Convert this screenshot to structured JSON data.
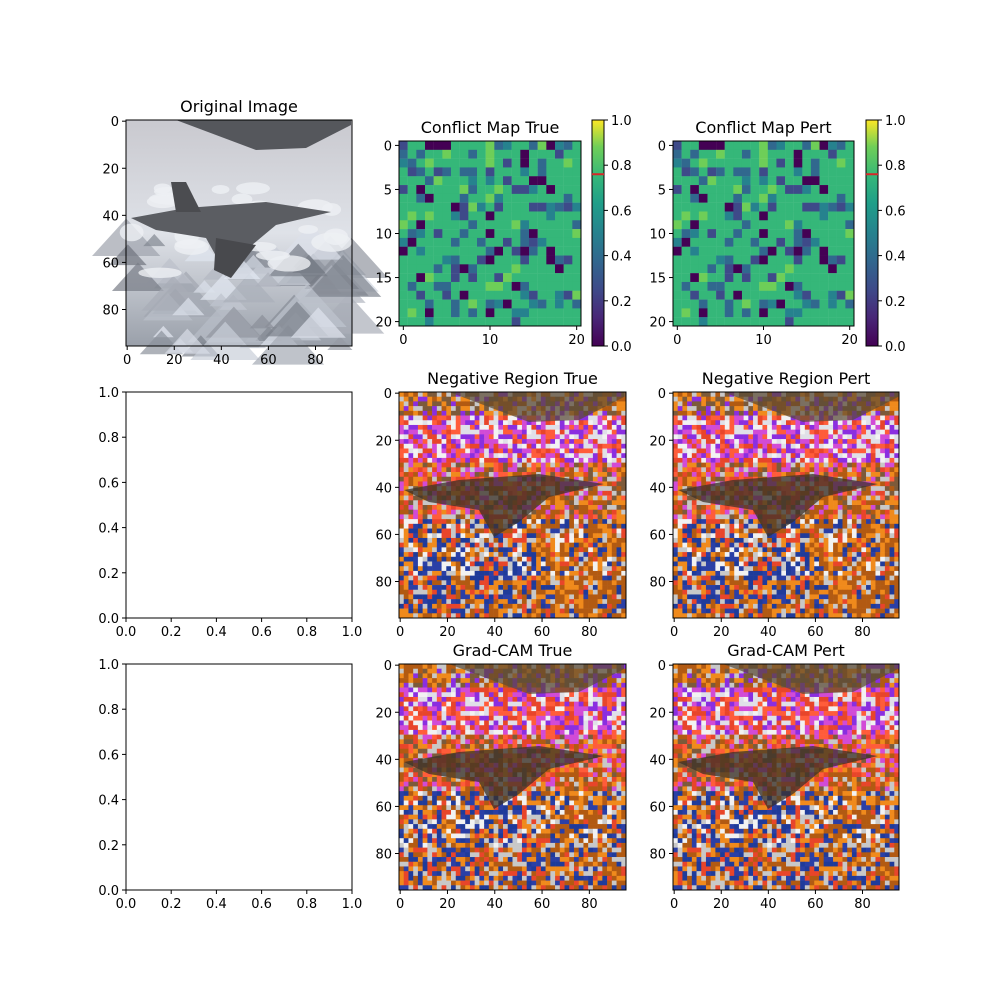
{
  "figure": {
    "panels": [
      {
        "id": "orig",
        "title": "Original Image",
        "kind": "image",
        "content": "two-fighter-jets-over-mountains",
        "xticks": [
          "0",
          "20",
          "40",
          "60",
          "80"
        ],
        "yticks": [
          "0",
          "20",
          "40",
          "60",
          "80"
        ]
      },
      {
        "id": "cmt",
        "title": "Conflict Map True",
        "kind": "heatmap",
        "xticks": [
          "0",
          "10",
          "20"
        ],
        "yticks": [
          "0",
          "5",
          "10",
          "15",
          "20"
        ]
      },
      {
        "id": "cmp",
        "title": "Conflict Map Pert",
        "kind": "heatmap",
        "xticks": [
          "0",
          "10",
          "20"
        ],
        "yticks": [
          "0",
          "5",
          "10",
          "15",
          "20"
        ]
      },
      {
        "id": "empty1",
        "title": "",
        "kind": "empty",
        "xticks": [
          "0.0",
          "0.2",
          "0.4",
          "0.6",
          "0.8",
          "1.0"
        ],
        "yticks": [
          "0.0",
          "0.2",
          "0.4",
          "0.6",
          "0.8",
          "1.0"
        ]
      },
      {
        "id": "nrt",
        "title": "Negative Region True",
        "kind": "overlay",
        "content": "negative-region-overlay",
        "xticks": [
          "0",
          "20",
          "40",
          "60",
          "80"
        ],
        "yticks": [
          "0",
          "20",
          "40",
          "60",
          "80"
        ]
      },
      {
        "id": "nrp",
        "title": "Negative Region Pert",
        "kind": "overlay",
        "content": "negative-region-overlay",
        "xticks": [
          "0",
          "20",
          "40",
          "60",
          "80"
        ],
        "yticks": [
          "0",
          "20",
          "40",
          "60",
          "80"
        ]
      },
      {
        "id": "empty2",
        "title": "",
        "kind": "empty",
        "xticks": [
          "0.0",
          "0.2",
          "0.4",
          "0.6",
          "0.8",
          "1.0"
        ],
        "yticks": [
          "0.0",
          "0.2",
          "0.4",
          "0.6",
          "0.8",
          "1.0"
        ]
      },
      {
        "id": "gct",
        "title": "Grad-CAM True",
        "kind": "overlay",
        "content": "grad-cam-overlay",
        "xticks": [
          "0",
          "20",
          "40",
          "60",
          "80"
        ],
        "yticks": [
          "0",
          "20",
          "40",
          "60",
          "80"
        ]
      },
      {
        "id": "gcp",
        "title": "Grad-CAM Pert",
        "kind": "overlay",
        "content": "grad-cam-overlay",
        "xticks": [
          "0",
          "20",
          "40",
          "60",
          "80"
        ],
        "yticks": [
          "0",
          "20",
          "40",
          "60",
          "80"
        ]
      }
    ],
    "colorbar": {
      "ticks": [
        "0.0",
        "0.2",
        "0.4",
        "0.6",
        "0.8",
        "1.0"
      ],
      "marker_value": 0.76,
      "marker_color": "#d62728",
      "colormap": "viridis"
    }
  },
  "chart_data": [
    {
      "type": "image",
      "title": "Original Image",
      "xlim": [
        0,
        96
      ],
      "ylim": [
        96,
        0
      ]
    },
    {
      "type": "heatmap",
      "title": "Conflict Map True",
      "grid": [
        21,
        21
      ],
      "value_range": [
        0,
        1
      ],
      "dominant_value": 0.75
    },
    {
      "type": "heatmap",
      "title": "Conflict Map Pert",
      "grid": [
        21,
        21
      ],
      "value_range": [
        0,
        1
      ],
      "dominant_value": 0.75
    },
    {
      "type": "scatter",
      "title": "",
      "xlim": [
        0,
        1
      ],
      "ylim": [
        0,
        1
      ],
      "series": []
    },
    {
      "type": "image",
      "title": "Negative Region True",
      "xlim": [
        0,
        96
      ],
      "ylim": [
        96,
        0
      ]
    },
    {
      "type": "image",
      "title": "Negative Region Pert",
      "xlim": [
        0,
        96
      ],
      "ylim": [
        96,
        0
      ]
    },
    {
      "type": "scatter",
      "title": "",
      "xlim": [
        0,
        1
      ],
      "ylim": [
        0,
        1
      ],
      "series": []
    },
    {
      "type": "image",
      "title": "Grad-CAM True",
      "xlim": [
        0,
        96
      ],
      "ylim": [
        96,
        0
      ]
    },
    {
      "type": "image",
      "title": "Grad-CAM Pert",
      "xlim": [
        0,
        96
      ],
      "ylim": [
        96,
        0
      ]
    }
  ]
}
